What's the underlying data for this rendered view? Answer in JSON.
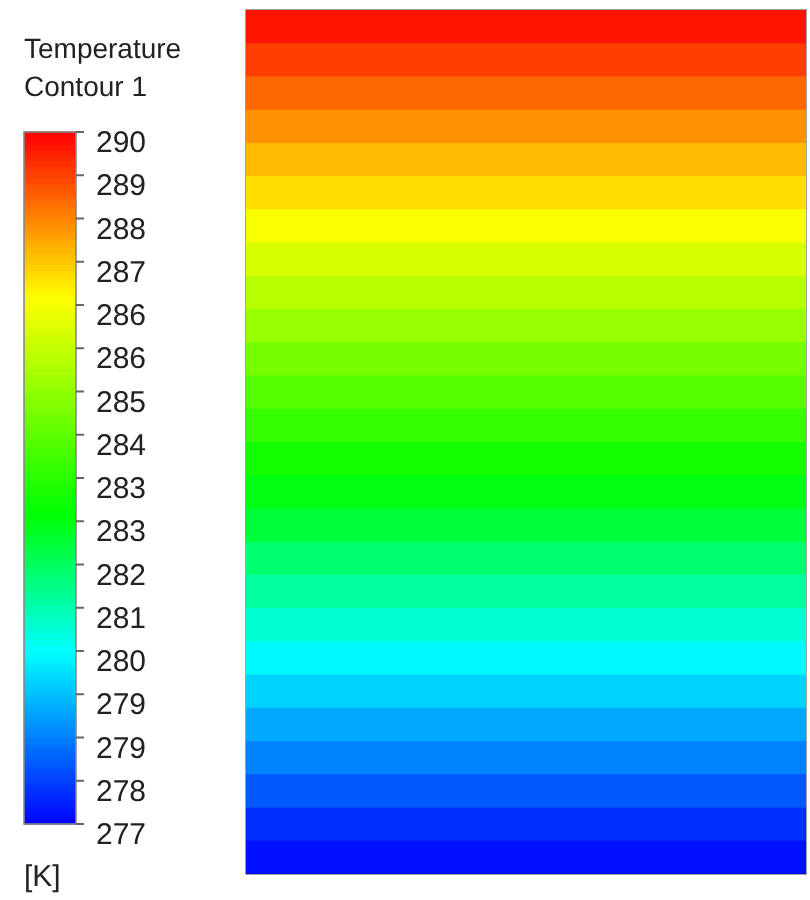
{
  "chart_data": {
    "type": "heatmap",
    "title": "Temperature",
    "subtitle": "Contour 1",
    "clabel": "[K]",
    "categories": [
      null
    ],
    "y_categories": [
      null,
      null,
      null,
      null,
      null,
      null,
      null,
      null,
      null,
      null,
      null,
      null,
      null,
      null,
      null,
      null,
      null,
      null,
      null,
      null,
      null,
      null,
      null,
      null,
      null,
      null
    ],
    "cells": [
      [
        289.4
      ],
      [
        288.9
      ],
      [
        288.4
      ],
      [
        287.9
      ],
      [
        287.4
      ],
      [
        287.0
      ],
      [
        286.5
      ],
      [
        286.0
      ],
      [
        285.5
      ],
      [
        285.0
      ],
      [
        284.5
      ],
      [
        284.0
      ],
      [
        283.5
      ],
      [
        283.0
      ],
      [
        282.5
      ],
      [
        282.1
      ],
      [
        281.6
      ],
      [
        281.1
      ],
      [
        280.6
      ],
      [
        280.1
      ],
      [
        279.6
      ],
      [
        279.1
      ],
      [
        278.6
      ],
      [
        278.1
      ],
      [
        277.6
      ],
      [
        277.2
      ]
    ],
    "clim": [
      277,
      289.64
    ],
    "cticks": [
      {
        "value": 277,
        "label": "277"
      },
      {
        "value": 277.79,
        "label": "278"
      },
      {
        "value": 278.58,
        "label": "279"
      },
      {
        "value": 279.37,
        "label": "279"
      },
      {
        "value": 280.16,
        "label": "280"
      },
      {
        "value": 280.95,
        "label": "281"
      },
      {
        "value": 281.74,
        "label": "282"
      },
      {
        "value": 282.53,
        "label": "283"
      },
      {
        "value": 283.32,
        "label": "283"
      },
      {
        "value": 284.11,
        "label": "284"
      },
      {
        "value": 284.9,
        "label": "285"
      },
      {
        "value": 285.69,
        "label": "286"
      },
      {
        "value": 286.48,
        "label": "286"
      },
      {
        "value": 287.27,
        "label": "287"
      },
      {
        "value": 288.06,
        "label": "288"
      },
      {
        "value": 288.85,
        "label": "289"
      },
      {
        "value": 289.64,
        "label": "290"
      }
    ]
  }
}
